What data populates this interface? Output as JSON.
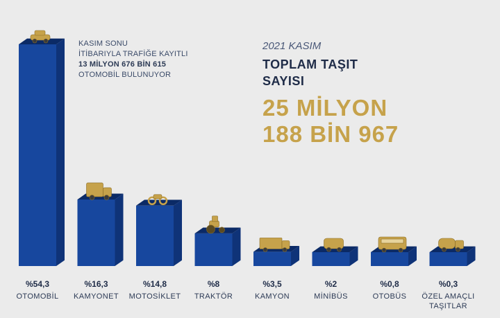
{
  "note": {
    "line1": "KASIM SONU",
    "line2": "İTİBARIYLA TRAFİĞE KAYITLI",
    "line3": "13 MİLYON 676 BİN 615",
    "line4": "OTOMOBİL BULUNUYOR"
  },
  "headline": {
    "period": "2021 KASIM",
    "title_line1": "TOPLAM TAŞIT",
    "title_line2": "SAYISI",
    "total_line1": "25 MİLYON",
    "total_line2": "188 BİN 967"
  },
  "colors": {
    "bar_front": "#17479e",
    "bar_side": "#0f3378",
    "bar_top": "#0b2a66",
    "accent_gold": "#c6a24b",
    "background": "#ebebeb"
  },
  "chart_data": {
    "type": "bar",
    "title": "TOPLAM TAŞIT SAYISI",
    "categories": [
      "OTOMOBİL",
      "KAMYONET",
      "MOTOSİKLET",
      "TRAKTÖR",
      "KAMYON",
      "MİNİBÜS",
      "OTOBÜS",
      "ÖZEL AMAÇLI TAŞITLAR"
    ],
    "values": [
      54.3,
      16.3,
      14.8,
      8,
      3.5,
      2,
      0.8,
      0.3
    ],
    "value_labels": [
      "%54,3",
      "%16,3",
      "%14,8",
      "%8",
      "%3,5",
      "%2",
      "%0,8",
      "%0,3"
    ],
    "category_label_lines": [
      [
        "OTOMOBİL"
      ],
      [
        "KAMYONET"
      ],
      [
        "MOTOSİKLET"
      ],
      [
        "TRAKTÖR"
      ],
      [
        "KAMYON"
      ],
      [
        "MİNİBÜS"
      ],
      [
        "OTOBÜS"
      ],
      [
        "ÖZEL AMAÇLI",
        "TAŞITLAR"
      ]
    ],
    "icons": [
      "car-icon",
      "pickup-truck-icon",
      "motorcycle-icon",
      "tractor-icon",
      "truck-icon",
      "minibus-icon",
      "bus-icon",
      "special-vehicle-icon"
    ],
    "unit": "%",
    "grid": false,
    "legend": "none"
  }
}
